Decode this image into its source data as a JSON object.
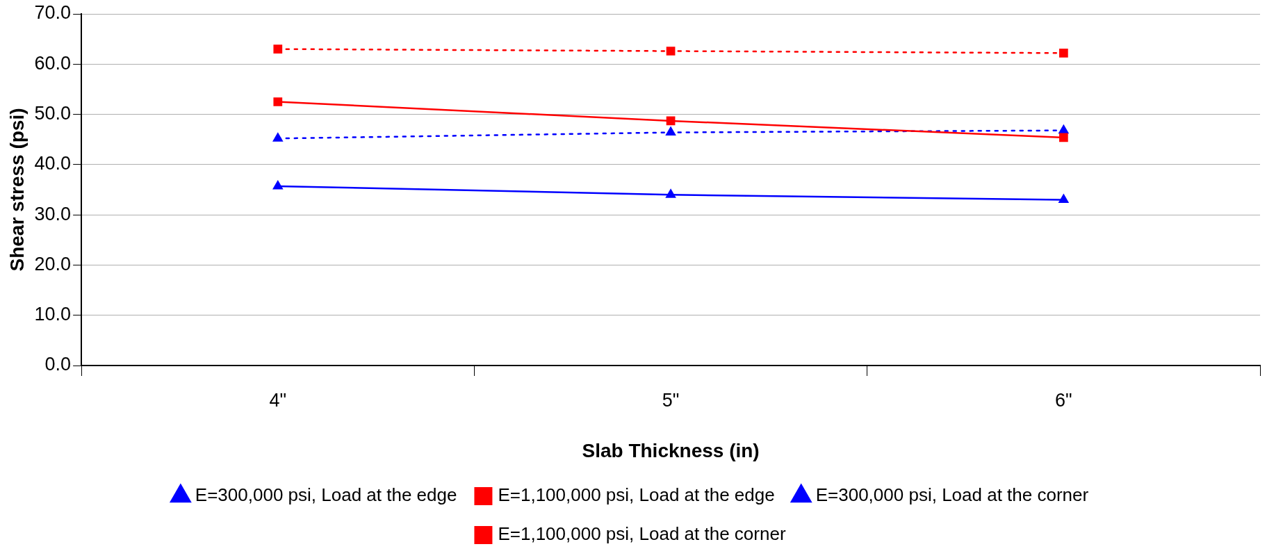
{
  "chart_data": {
    "type": "line",
    "xlabel": "Slab Thickness (in)",
    "ylabel": "Shear stress (psi)",
    "categories": [
      "4\"",
      "5\"",
      "6\""
    ],
    "ylim": [
      0,
      70
    ],
    "yticks": [
      {
        "value": 0,
        "label": "0.0"
      },
      {
        "value": 10,
        "label": "10.0"
      },
      {
        "value": 20,
        "label": "20.0"
      },
      {
        "value": 30,
        "label": "30.0"
      },
      {
        "value": 40,
        "label": "40.0"
      },
      {
        "value": 50,
        "label": "50.0"
      },
      {
        "value": 60,
        "label": "60.0"
      },
      {
        "value": 70,
        "label": "70.0"
      }
    ],
    "grid": "y",
    "legend": "bottom",
    "series": [
      {
        "name": "E=300,000 psi, Load at the edge",
        "color": "#0000ff",
        "marker": "triangle",
        "line_style": "solid",
        "values": [
          35.7,
          34.0,
          33.0
        ]
      },
      {
        "name": "E=1,100,000 psi, Load at the edge",
        "color": "#ff0000",
        "marker": "square",
        "line_style": "solid",
        "values": [
          52.5,
          48.7,
          45.4
        ]
      },
      {
        "name": "E=300,000 psi, Load at the corner",
        "color": "#0000ff",
        "marker": "triangle",
        "line_style": "dotted",
        "values": [
          45.2,
          46.4,
          46.8
        ]
      },
      {
        "name": "E=1,100,000 psi, Load at the corner",
        "color": "#ff0000",
        "marker": "square",
        "line_style": "dotted",
        "values": [
          63.0,
          62.6,
          62.2
        ]
      }
    ]
  }
}
